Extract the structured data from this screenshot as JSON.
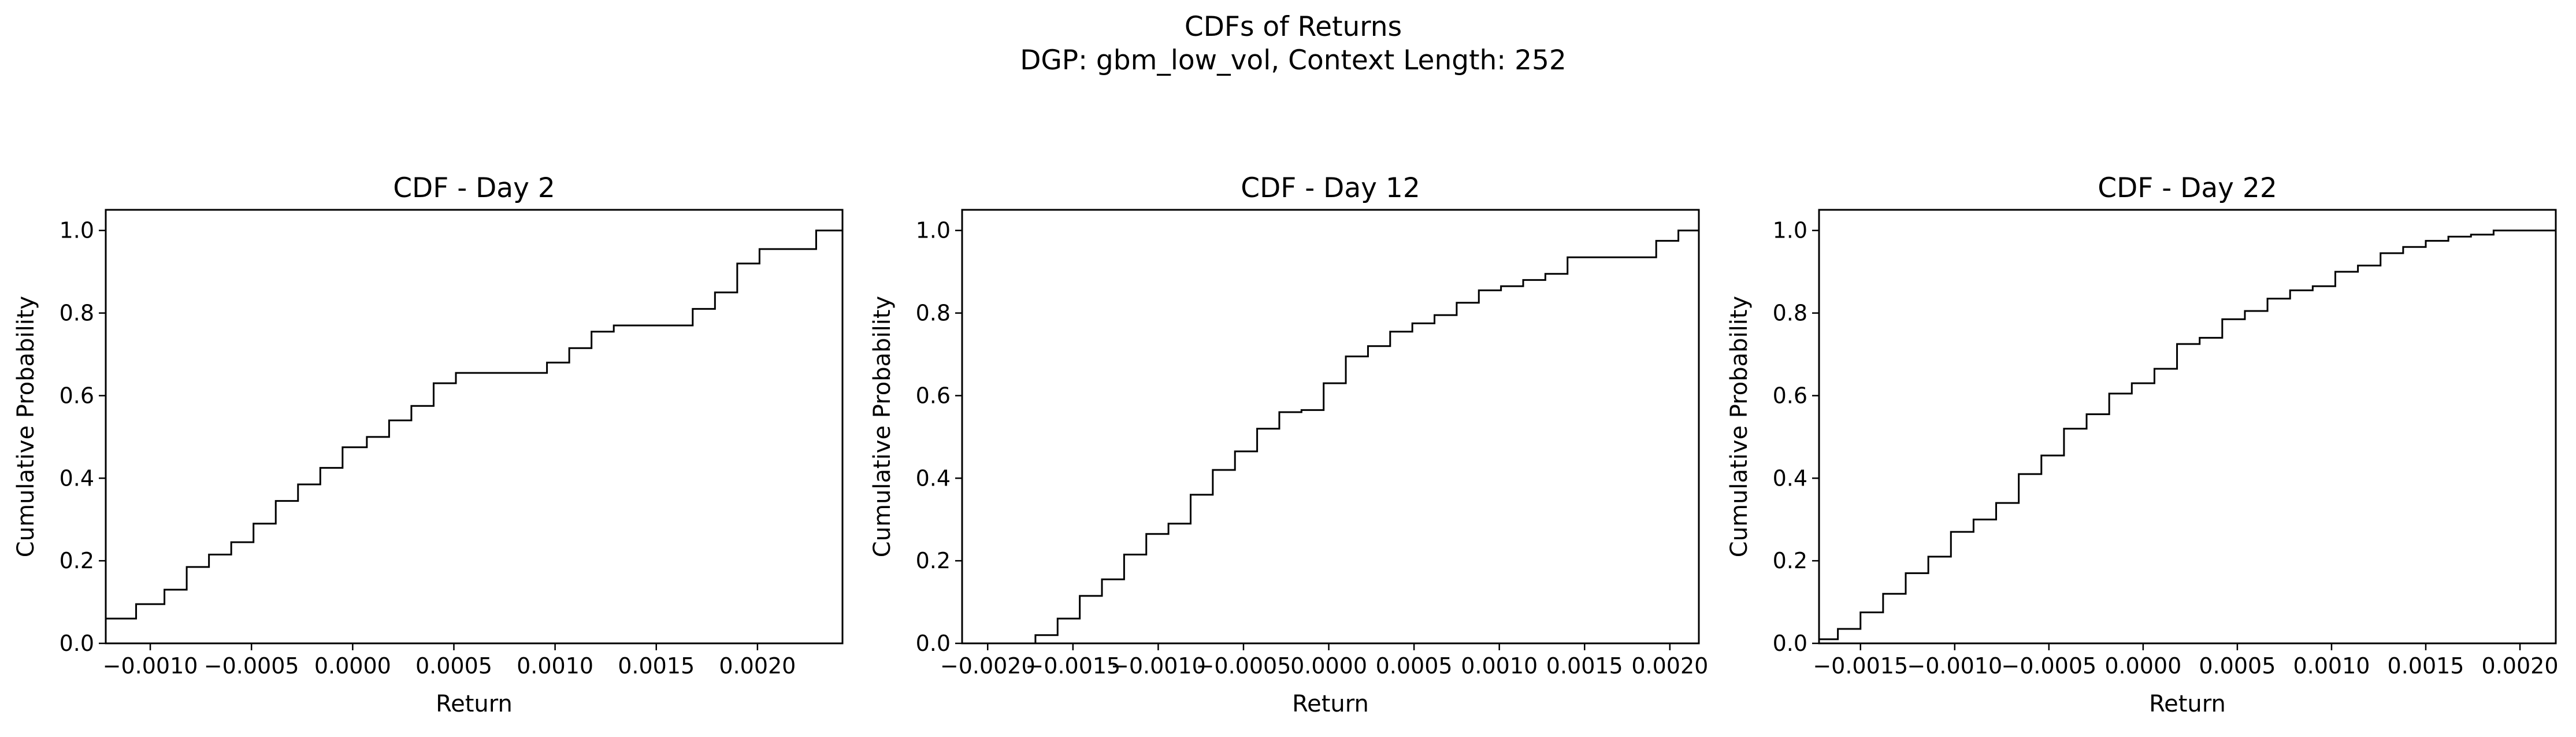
{
  "figure": {
    "title": "CDFs of Returns",
    "subtitle": "DGP: gbm_low_vol, Context Length: 252"
  },
  "chart_data": [
    {
      "type": "line",
      "step": true,
      "title": "CDF - Day 2",
      "xlabel": "Return",
      "ylabel": "Cumulative Probability",
      "xlim": [
        -0.00122,
        0.00242
      ],
      "ylim": [
        0,
        1.05
      ],
      "xticks": [
        -0.001,
        -0.0005,
        0.0,
        0.0005,
        0.001,
        0.0015,
        0.002
      ],
      "xtick_labels": [
        "−0.0010",
        "−0.0005",
        "0.0000",
        "0.0005",
        "0.0010",
        "0.0015",
        "0.0020"
      ],
      "yticks": [
        0.0,
        0.2,
        0.4,
        0.6,
        0.8,
        1.0
      ],
      "ytick_labels": [
        "0.0",
        "0.2",
        "0.4",
        "0.6",
        "0.8",
        "1.0"
      ],
      "grid": false,
      "color": "#000000",
      "x": [
        -0.00122,
        -0.00107,
        -0.00093,
        -0.00082,
        -0.00071,
        -0.0006,
        -0.00049,
        -0.00038,
        -0.00027,
        -0.00016,
        -5e-05,
        7e-05,
        0.00018,
        0.00029,
        0.0004,
        0.00051,
        0.00063,
        0.00096,
        0.00107,
        0.00118,
        0.00129,
        0.00168,
        0.00179,
        0.0019,
        0.00201,
        0.00229,
        0.00242
      ],
      "y": [
        0.06,
        0.095,
        0.13,
        0.185,
        0.215,
        0.245,
        0.29,
        0.345,
        0.385,
        0.425,
        0.475,
        0.5,
        0.54,
        0.575,
        0.63,
        0.655,
        0.655,
        0.68,
        0.715,
        0.755,
        0.77,
        0.81,
        0.85,
        0.92,
        0.955,
        1.0,
        1.0
      ]
    },
    {
      "type": "line",
      "step": true,
      "title": "CDF - Day 12",
      "xlabel": "Return",
      "ylabel": "Cumulative Probability",
      "xlim": [
        -0.00215,
        0.00217
      ],
      "ylim": [
        0,
        1.05
      ],
      "xticks": [
        -0.002,
        -0.0015,
        -0.001,
        -0.0005,
        0.0,
        0.0005,
        0.001,
        0.0015,
        0.002
      ],
      "xtick_labels": [
        "−0.0020",
        "−0.0015",
        "−0.0010",
        "−0.0005",
        "0.0000",
        "0.0005",
        "0.0010",
        "0.0015",
        "0.0020"
      ],
      "yticks": [
        0.0,
        0.2,
        0.4,
        0.6,
        0.8,
        1.0
      ],
      "ytick_labels": [
        "0.0",
        "0.2",
        "0.4",
        "0.6",
        "0.8",
        "1.0"
      ],
      "grid": false,
      "color": "#000000",
      "x": [
        -0.00215,
        -0.00172,
        -0.00159,
        -0.00146,
        -0.00133,
        -0.0012,
        -0.00107,
        -0.00094,
        -0.00081,
        -0.00068,
        -0.00055,
        -0.00042,
        -0.00029,
        -0.00016,
        -3e-05,
        0.0001,
        0.00023,
        0.00036,
        0.00049,
        0.00062,
        0.00075,
        0.00088,
        0.00101,
        0.00114,
        0.00127,
        0.0014,
        0.00153,
        0.00166,
        0.00192,
        0.00205,
        0.00217
      ],
      "y": [
        0.0,
        0.02,
        0.06,
        0.115,
        0.155,
        0.215,
        0.265,
        0.29,
        0.36,
        0.42,
        0.465,
        0.52,
        0.56,
        0.565,
        0.63,
        0.695,
        0.72,
        0.755,
        0.775,
        0.795,
        0.825,
        0.855,
        0.865,
        0.88,
        0.895,
        0.935,
        0.935,
        0.935,
        0.975,
        1.0,
        1.0
      ]
    },
    {
      "type": "line",
      "step": true,
      "title": "CDF - Day 22",
      "xlabel": "Return",
      "ylabel": "Cumulative Probability",
      "xlim": [
        -0.00172,
        0.00219
      ],
      "ylim": [
        0,
        1.05
      ],
      "xticks": [
        -0.0015,
        -0.001,
        -0.0005,
        0.0,
        0.0005,
        0.001,
        0.0015,
        0.002
      ],
      "xtick_labels": [
        "−0.0015",
        "−0.0010",
        "−0.0005",
        "0.0000",
        "0.0005",
        "0.0010",
        "0.0015",
        "0.0020"
      ],
      "yticks": [
        0.0,
        0.2,
        0.4,
        0.6,
        0.8,
        1.0
      ],
      "ytick_labels": [
        "0.0",
        "0.2",
        "0.4",
        "0.6",
        "0.8",
        "1.0"
      ],
      "grid": false,
      "color": "#000000",
      "x": [
        -0.00172,
        -0.00162,
        -0.0015,
        -0.00138,
        -0.00126,
        -0.00114,
        -0.00102,
        -0.0009,
        -0.00078,
        -0.00066,
        -0.00054,
        -0.00042,
        -0.0003,
        -0.00018,
        -6e-05,
        6e-05,
        0.00018,
        0.0003,
        0.00042,
        0.00054,
        0.00066,
        0.00078,
        0.0009,
        0.00102,
        0.00114,
        0.00126,
        0.00138,
        0.0015,
        0.00162,
        0.00174,
        0.00186,
        0.00198,
        0.0021,
        0.00219
      ],
      "y": [
        0.01,
        0.035,
        0.075,
        0.12,
        0.17,
        0.21,
        0.27,
        0.3,
        0.34,
        0.41,
        0.455,
        0.52,
        0.555,
        0.605,
        0.63,
        0.665,
        0.725,
        0.74,
        0.785,
        0.805,
        0.835,
        0.855,
        0.865,
        0.9,
        0.915,
        0.945,
        0.96,
        0.975,
        0.985,
        0.99,
        1.0,
        1.0,
        1.0,
        1.0
      ]
    }
  ]
}
